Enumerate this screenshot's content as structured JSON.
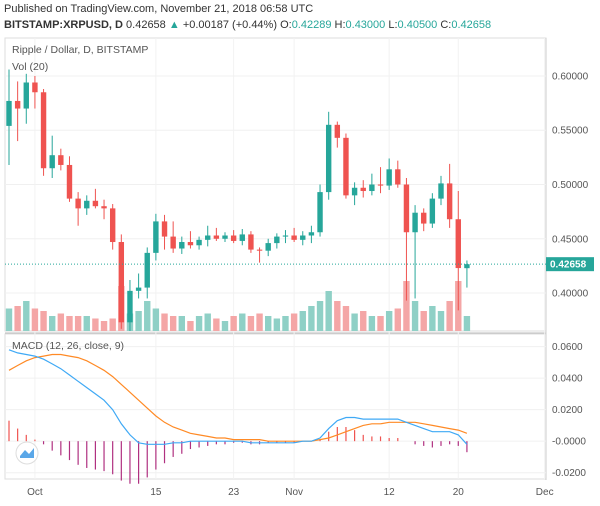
{
  "header": {
    "published": "Published on TradingView.com, November 21, 2018 06:58 UTC",
    "symbol": "BITSTAMP:XRPUSD, D",
    "last": "0.42658",
    "change": "+0.00187 (+0.44%)",
    "open_label": "O:",
    "open": "0.42289",
    "high_label": "H:",
    "high": "0.43000",
    "low_label": "L:",
    "low": "0.40500",
    "close_label": "C:",
    "close": "0.42658"
  },
  "price_pane": {
    "title": "Ripple / Dollar, D, BITSTAMP",
    "vol_label": "Vol (20)",
    "price_tag": "0.42658",
    "y_ticks": [
      "0.60000",
      "0.55000",
      "0.50000",
      "0.45000",
      "0.40000"
    ]
  },
  "macd_pane": {
    "title": "MACD (12, 26, close, 9)",
    "y_ticks": [
      "0.0600",
      "0.0400",
      "0.0200",
      "-0.0000",
      "-0.0200"
    ]
  },
  "x_axis": {
    "ticks": [
      "Oct",
      "15",
      "23",
      "Nov",
      "12",
      "20",
      "Dec"
    ]
  },
  "colors": {
    "up": "#26a69a",
    "down": "#ef5350",
    "vol_up": "#8fd0c6",
    "vol_down": "#f4a6a6",
    "macd": "#3fa9f5",
    "signal": "#ff8a25"
  },
  "chart_data": {
    "type": "candlestick",
    "candles": [
      {
        "o": 0.554,
        "h": 0.606,
        "l": 0.518,
        "c": 0.577
      },
      {
        "o": 0.577,
        "h": 0.595,
        "l": 0.54,
        "c": 0.57
      },
      {
        "o": 0.57,
        "h": 0.602,
        "l": 0.556,
        "c": 0.594
      },
      {
        "o": 0.594,
        "h": 0.6,
        "l": 0.57,
        "c": 0.585
      },
      {
        "o": 0.585,
        "h": 0.588,
        "l": 0.508,
        "c": 0.515
      },
      {
        "o": 0.515,
        "h": 0.545,
        "l": 0.506,
        "c": 0.527
      },
      {
        "o": 0.527,
        "h": 0.533,
        "l": 0.513,
        "c": 0.518
      },
      {
        "o": 0.518,
        "h": 0.526,
        "l": 0.484,
        "c": 0.487
      },
      {
        "o": 0.487,
        "h": 0.493,
        "l": 0.462,
        "c": 0.478
      },
      {
        "o": 0.478,
        "h": 0.49,
        "l": 0.472,
        "c": 0.485
      },
      {
        "o": 0.485,
        "h": 0.496,
        "l": 0.478,
        "c": 0.48
      },
      {
        "o": 0.48,
        "h": 0.486,
        "l": 0.468,
        "c": 0.478
      },
      {
        "o": 0.478,
        "h": 0.482,
        "l": 0.44,
        "c": 0.447
      },
      {
        "o": 0.447,
        "h": 0.454,
        "l": 0.367,
        "c": 0.373
      },
      {
        "o": 0.373,
        "h": 0.412,
        "l": 0.365,
        "c": 0.402
      },
      {
        "o": 0.402,
        "h": 0.418,
        "l": 0.395,
        "c": 0.405
      },
      {
        "o": 0.405,
        "h": 0.442,
        "l": 0.395,
        "c": 0.437
      },
      {
        "o": 0.437,
        "h": 0.473,
        "l": 0.43,
        "c": 0.466
      },
      {
        "o": 0.466,
        "h": 0.472,
        "l": 0.44,
        "c": 0.452
      },
      {
        "o": 0.452,
        "h": 0.466,
        "l": 0.437,
        "c": 0.441
      },
      {
        "o": 0.441,
        "h": 0.452,
        "l": 0.436,
        "c": 0.447
      },
      {
        "o": 0.447,
        "h": 0.457,
        "l": 0.441,
        "c": 0.444
      },
      {
        "o": 0.444,
        "h": 0.452,
        "l": 0.44,
        "c": 0.449
      },
      {
        "o": 0.449,
        "h": 0.462,
        "l": 0.443,
        "c": 0.453
      },
      {
        "o": 0.453,
        "h": 0.46,
        "l": 0.448,
        "c": 0.45
      },
      {
        "o": 0.45,
        "h": 0.456,
        "l": 0.447,
        "c": 0.453
      },
      {
        "o": 0.453,
        "h": 0.458,
        "l": 0.446,
        "c": 0.448
      },
      {
        "o": 0.448,
        "h": 0.459,
        "l": 0.444,
        "c": 0.454
      },
      {
        "o": 0.454,
        "h": 0.457,
        "l": 0.437,
        "c": 0.44
      },
      {
        "o": 0.44,
        "h": 0.442,
        "l": 0.428,
        "c": 0.439
      },
      {
        "o": 0.439,
        "h": 0.45,
        "l": 0.434,
        "c": 0.446
      },
      {
        "o": 0.446,
        "h": 0.455,
        "l": 0.441,
        "c": 0.452
      },
      {
        "o": 0.452,
        "h": 0.458,
        "l": 0.446,
        "c": 0.453
      },
      {
        "o": 0.453,
        "h": 0.46,
        "l": 0.447,
        "c": 0.449
      },
      {
        "o": 0.449,
        "h": 0.457,
        "l": 0.444,
        "c": 0.453
      },
      {
        "o": 0.453,
        "h": 0.462,
        "l": 0.446,
        "c": 0.456
      },
      {
        "o": 0.456,
        "h": 0.5,
        "l": 0.452,
        "c": 0.493
      },
      {
        "o": 0.493,
        "h": 0.567,
        "l": 0.486,
        "c": 0.555
      },
      {
        "o": 0.555,
        "h": 0.558,
        "l": 0.534,
        "c": 0.543
      },
      {
        "o": 0.543,
        "h": 0.547,
        "l": 0.487,
        "c": 0.49
      },
      {
        "o": 0.49,
        "h": 0.502,
        "l": 0.481,
        "c": 0.497
      },
      {
        "o": 0.497,
        "h": 0.504,
        "l": 0.488,
        "c": 0.494
      },
      {
        "o": 0.494,
        "h": 0.51,
        "l": 0.49,
        "c": 0.5
      },
      {
        "o": 0.5,
        "h": 0.516,
        "l": 0.492,
        "c": 0.499
      },
      {
        "o": 0.499,
        "h": 0.524,
        "l": 0.495,
        "c": 0.514
      },
      {
        "o": 0.514,
        "h": 0.522,
        "l": 0.497,
        "c": 0.5
      },
      {
        "o": 0.5,
        "h": 0.506,
        "l": 0.393,
        "c": 0.456
      },
      {
        "o": 0.456,
        "h": 0.481,
        "l": 0.395,
        "c": 0.474
      },
      {
        "o": 0.474,
        "h": 0.478,
        "l": 0.457,
        "c": 0.464
      },
      {
        "o": 0.464,
        "h": 0.492,
        "l": 0.46,
        "c": 0.487
      },
      {
        "o": 0.487,
        "h": 0.508,
        "l": 0.481,
        "c": 0.501
      },
      {
        "o": 0.501,
        "h": 0.519,
        "l": 0.46,
        "c": 0.468
      },
      {
        "o": 0.468,
        "h": 0.494,
        "l": 0.384,
        "c": 0.423
      },
      {
        "o": 0.42289,
        "h": 0.43,
        "l": 0.405,
        "c": 0.42658
      }
    ],
    "volume_rel": [
      0.45,
      0.5,
      0.6,
      0.45,
      0.4,
      0.3,
      0.35,
      0.3,
      0.3,
      0.3,
      0.25,
      0.2,
      0.25,
      0.9,
      0.35,
      0.4,
      0.6,
      0.45,
      0.35,
      0.3,
      0.3,
      0.2,
      0.3,
      0.35,
      0.25,
      0.2,
      0.3,
      0.35,
      0.3,
      0.35,
      0.3,
      0.25,
      0.3,
      0.35,
      0.4,
      0.5,
      0.6,
      0.8,
      0.6,
      0.5,
      0.35,
      0.4,
      0.3,
      0.3,
      0.4,
      0.45,
      1.0,
      0.6,
      0.4,
      0.5,
      0.4,
      0.6,
      1.0,
      0.3
    ],
    "macd": [
      0.058,
      0.056,
      0.055,
      0.054,
      0.052,
      0.049,
      0.046,
      0.042,
      0.038,
      0.034,
      0.03,
      0.026,
      0.02,
      0.011,
      0.004,
      -0.001,
      -0.002,
      -0.002,
      -0.002,
      -0.001,
      -0.001,
      0.0,
      0.0,
      0.0,
      0.0,
      0.0,
      0.0,
      0.0,
      -0.001,
      -0.001,
      -0.001,
      -0.001,
      -0.001,
      -0.001,
      0.0,
      0.0,
      0.002,
      0.008,
      0.013,
      0.015,
      0.015,
      0.014,
      0.014,
      0.014,
      0.014,
      0.014,
      0.012,
      0.01,
      0.008,
      0.006,
      0.006,
      0.006,
      0.004,
      -0.002
    ],
    "signal": [
      0.045,
      0.048,
      0.051,
      0.053,
      0.054,
      0.055,
      0.055,
      0.054,
      0.053,
      0.051,
      0.048,
      0.045,
      0.041,
      0.036,
      0.031,
      0.026,
      0.021,
      0.016,
      0.012,
      0.009,
      0.007,
      0.005,
      0.004,
      0.003,
      0.002,
      0.002,
      0.001,
      0.001,
      0.001,
      0.001,
      0.0,
      0.0,
      0.0,
      0.0,
      0.0,
      0.0,
      0.001,
      0.002,
      0.004,
      0.006,
      0.008,
      0.01,
      0.011,
      0.011,
      0.012,
      0.012,
      0.012,
      0.012,
      0.011,
      0.01,
      0.009,
      0.008,
      0.007,
      0.005
    ],
    "y_range": [
      0.365,
      0.635
    ],
    "macd_range": [
      -0.024,
      0.068
    ],
    "date_range": "Oct – Dec 2018"
  }
}
